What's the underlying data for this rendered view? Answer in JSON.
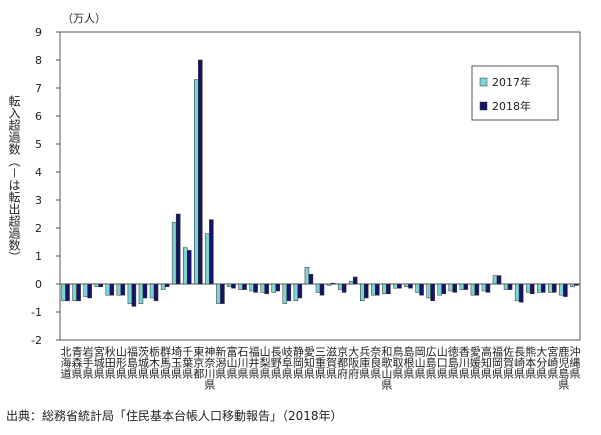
{
  "chart_data": {
    "type": "bar",
    "unit_label": "（万人）",
    "ylabel": "転入超過数（－は転出超過数）",
    "source": "出典：総務省統計局「住民基本台帳人口移動報告」（2018年）",
    "categories": [
      "北海道",
      "青森県",
      "岩手県",
      "宮城県",
      "秋田県",
      "山形県",
      "福島県",
      "茨城県",
      "栃木県",
      "群馬県",
      "埼玉県",
      "千葉県",
      "東京都",
      "神奈川県",
      "新潟県",
      "富山県",
      "石川県",
      "福井県",
      "山梨県",
      "長野県",
      "岐阜県",
      "静岡県",
      "愛知県",
      "三重県",
      "滋賀県",
      "京都府",
      "大阪府",
      "兵庫県",
      "奈良県",
      "和歌山県",
      "鳥取県",
      "島根県",
      "岡山県",
      "広島県",
      "山口県",
      "徳島県",
      "香川県",
      "愛媛県",
      "高知県",
      "福岡県",
      "佐賀県",
      "長崎県",
      "熊本県",
      "大分県",
      "宮崎県",
      "鹿児島県",
      "沖縄県"
    ],
    "series": [
      {
        "name": "2017年",
        "color": "#7fd3d3",
        "values": [
          -0.6,
          -0.6,
          -0.45,
          -0.1,
          -0.4,
          -0.4,
          -0.7,
          -0.7,
          -0.5,
          -0.2,
          2.2,
          1.3,
          7.3,
          1.8,
          -0.7,
          -0.1,
          -0.2,
          -0.25,
          -0.3,
          -0.3,
          -0.7,
          -0.6,
          0.6,
          -0.3,
          -0.05,
          -0.2,
          0.1,
          -0.6,
          -0.4,
          -0.35,
          -0.15,
          -0.1,
          -0.3,
          -0.5,
          -0.4,
          -0.25,
          -0.2,
          -0.4,
          -0.25,
          0.3,
          -0.2,
          -0.6,
          -0.3,
          -0.3,
          -0.3,
          -0.4,
          -0.1
        ]
      },
      {
        "name": "2018年",
        "color": "#14146b",
        "values": [
          -0.6,
          -0.6,
          -0.5,
          -0.1,
          -0.4,
          -0.4,
          -0.8,
          -0.5,
          -0.6,
          -0.1,
          2.5,
          1.2,
          8.0,
          2.3,
          -0.7,
          -0.15,
          -0.2,
          -0.3,
          -0.35,
          -0.25,
          -0.6,
          -0.5,
          0.35,
          -0.4,
          0.03,
          -0.3,
          0.25,
          -0.5,
          -0.4,
          -0.35,
          -0.15,
          -0.15,
          -0.4,
          -0.6,
          -0.35,
          -0.3,
          -0.2,
          -0.4,
          -0.3,
          0.3,
          -0.2,
          -0.65,
          -0.35,
          -0.3,
          -0.3,
          -0.45,
          -0.05
        ]
      }
    ],
    "ylim": [
      -2,
      9
    ],
    "yticks": [
      -2,
      -1,
      0,
      1,
      2,
      3,
      4,
      5,
      6,
      7,
      8,
      9
    ],
    "legend": "upper right"
  }
}
